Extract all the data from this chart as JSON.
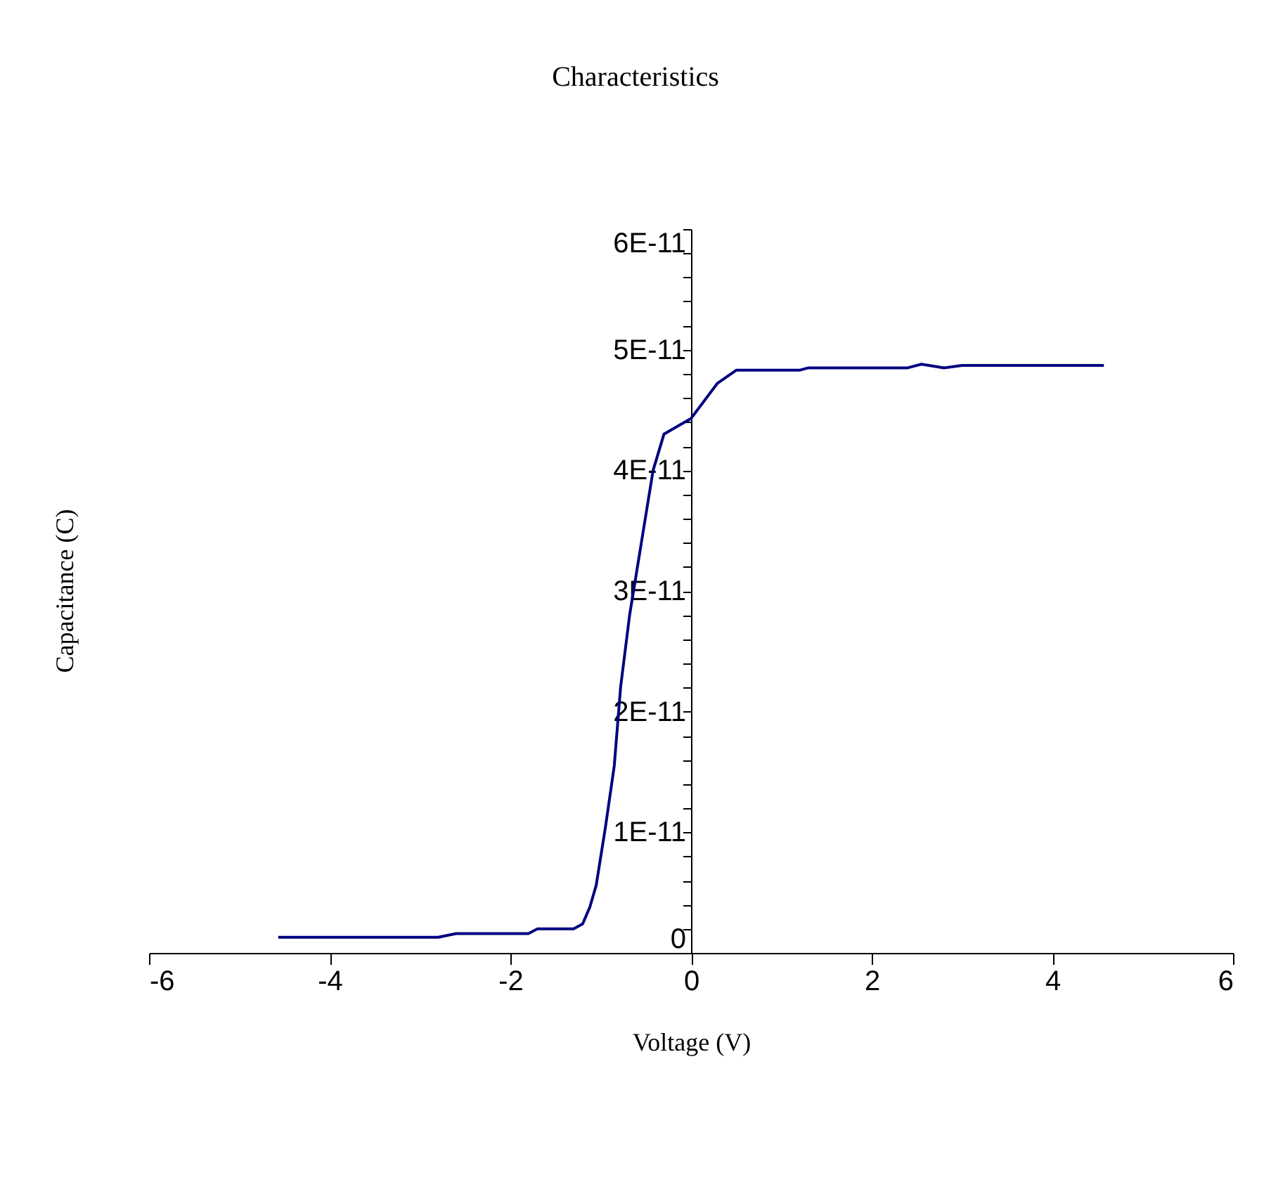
{
  "chart_data": {
    "type": "line",
    "title": "Characteristics",
    "xlabel": "Voltage (V)",
    "ylabel": "Capacitance (C)",
    "x": [
      -4.57,
      -2.8,
      -2.6,
      -1.8,
      -1.7,
      -1.3,
      -1.2,
      -1.12,
      -1.05,
      -0.95,
      -0.85,
      -0.78,
      -0.68,
      -0.55,
      -0.42,
      -0.3,
      0,
      0.29,
      0.5,
      1.2,
      1.3,
      2.4,
      2.55,
      2.8,
      3.0,
      4.57
    ],
    "series": [
      {
        "color": "#000080",
        "values": [
          1.3e-12,
          1.3e-12,
          1.6e-12,
          1.6e-12,
          2e-12,
          2e-12,
          2.4e-12,
          3.8e-12,
          5.6e-12,
          1.03e-11,
          1.55e-11,
          2.2e-11,
          2.8e-11,
          3.4e-11,
          4e-11,
          4.3e-11,
          4.43e-11,
          4.72e-11,
          4.83e-11,
          4.83e-11,
          4.85e-11,
          4.85e-11,
          4.88e-11,
          4.85e-11,
          4.87e-11,
          4.87e-11
        ]
      }
    ],
    "xlim": [
      -6,
      6
    ],
    "xticks": [
      -6,
      -4,
      -2,
      0,
      2,
      4,
      6
    ],
    "ylim": [
      0,
      6e-11
    ],
    "yticks": [
      0,
      {
        "value": 2e-12,
        "label": null
      },
      {
        "value": 4e-12,
        "label": null
      },
      {
        "value": 6e-12,
        "label": null
      },
      {
        "value": 8e-12,
        "label": null
      },
      {
        "value": 1e-11,
        "label": "1E-11"
      },
      {
        "value": 1.2e-11,
        "label": null
      },
      {
        "value": 1.4e-11,
        "label": null
      },
      {
        "value": 1.6e-11,
        "label": null
      },
      {
        "value": 1.8e-11,
        "label": null
      },
      {
        "value": 2e-11,
        "label": "2E-11"
      },
      {
        "value": 2.2e-11,
        "label": null
      },
      {
        "value": 2.4e-11,
        "label": null
      },
      {
        "value": 2.6e-11,
        "label": null
      },
      {
        "value": 2.8e-11,
        "label": null
      },
      {
        "value": 3e-11,
        "label": "3E-11"
      },
      {
        "value": 3.2e-11,
        "label": null
      },
      {
        "value": 3.4e-11,
        "label": null
      },
      {
        "value": 3.6e-11,
        "label": null
      },
      {
        "value": 3.8e-11,
        "label": null
      },
      {
        "value": 4e-11,
        "label": "4E-11"
      },
      {
        "value": 4.2e-11,
        "label": null
      },
      {
        "value": 4.4e-11,
        "label": null
      },
      {
        "value": 4.6e-11,
        "label": null
      },
      {
        "value": 4.8e-11,
        "label": null
      },
      {
        "value": 5e-11,
        "label": "5E-11"
      },
      {
        "value": 5.2e-11,
        "label": null
      },
      {
        "value": 5.4e-11,
        "label": null
      },
      {
        "value": 5.6e-11,
        "label": null
      },
      {
        "value": 5.8e-11,
        "label": null
      },
      {
        "value": 6e-11,
        "label": "6E-11"
      }
    ],
    "grid": false,
    "marker": "none",
    "line_style": "solid"
  }
}
